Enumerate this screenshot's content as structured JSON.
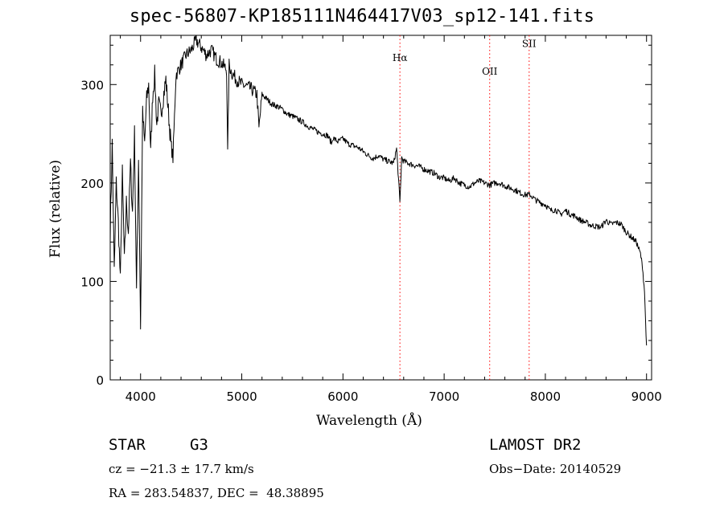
{
  "chart_data": {
    "type": "line",
    "title": "spec-56807-KP185111N464417V03_sp12-141.fits",
    "xlabel": "Wavelength (Å)",
    "ylabel": "Flux (relative)",
    "xlim": [
      3700,
      9050
    ],
    "ylim": [
      0,
      350
    ],
    "xticks": [
      4000,
      5000,
      6000,
      7000,
      8000,
      9000
    ],
    "yticks": [
      0,
      100,
      200,
      300
    ],
    "grid": false,
    "series": [
      {
        "color": "#000000",
        "x": [
          3700,
          3720,
          3740,
          3760,
          3780,
          3800,
          3820,
          3840,
          3860,
          3880,
          3900,
          3920,
          3940,
          3960,
          3980,
          4000,
          4020,
          4040,
          4060,
          4080,
          4100,
          4120,
          4140,
          4160,
          4180,
          4200,
          4250,
          4300,
          4320,
          4350,
          4400,
          4450,
          4500,
          4550,
          4600,
          4650,
          4700,
          4750,
          4800,
          4850,
          4861,
          4875,
          4900,
          4950,
          5000,
          5050,
          5100,
          5150,
          5170,
          5200,
          5250,
          5300,
          5350,
          5400,
          5450,
          5500,
          5550,
          5600,
          5650,
          5700,
          5750,
          5800,
          5850,
          5890,
          5900,
          5950,
          6000,
          6050,
          6100,
          6150,
          6200,
          6250,
          6300,
          6350,
          6400,
          6450,
          6500,
          6530,
          6563,
          6580,
          6600,
          6650,
          6700,
          6750,
          6800,
          6850,
          6900,
          6950,
          7000,
          7050,
          7100,
          7150,
          7200,
          7250,
          7300,
          7350,
          7400,
          7450,
          7500,
          7550,
          7600,
          7650,
          7700,
          7750,
          7800,
          7850,
          7900,
          7950,
          8000,
          8050,
          8100,
          8150,
          8200,
          8250,
          8300,
          8350,
          8400,
          8450,
          8500,
          8550,
          8600,
          8650,
          8700,
          8750,
          8800,
          8850,
          8900,
          8940,
          8960,
          8980,
          8990,
          9000
        ],
        "y": [
          150,
          240,
          110,
          200,
          160,
          100,
          210,
          120,
          180,
          150,
          220,
          170,
          250,
          90,
          225,
          55,
          270,
          240,
          285,
          300,
          230,
          290,
          310,
          260,
          280,
          270,
          305,
          240,
          225,
          310,
          320,
          330,
          335,
          345,
          338,
          330,
          335,
          326,
          322,
          315,
          230,
          320,
          312,
          305,
          300,
          298,
          295,
          290,
          255,
          290,
          285,
          280,
          278,
          275,
          270,
          268,
          265,
          262,
          258,
          255,
          252,
          250,
          248,
          240,
          246,
          242,
          245,
          240,
          238,
          236,
          232,
          228,
          225,
          228,
          224,
          222,
          220,
          235,
          180,
          226,
          222,
          220,
          218,
          217,
          214,
          212,
          210,
          206,
          205,
          202,
          205,
          200,
          198,
          196,
          200,
          202,
          200,
          198,
          200,
          200,
          197,
          195,
          193,
          190,
          188,
          188,
          183,
          180,
          178,
          172,
          173,
          168,
          172,
          168,
          166,
          162,
          160,
          157,
          156,
          155,
          162,
          158,
          160,
          158,
          150,
          145,
          140,
          128,
          115,
          90,
          60,
          35
        ]
      }
    ],
    "annotations": [
      {
        "label": "Hα",
        "x": 6563,
        "label_y": 324
      },
      {
        "label": "OII",
        "x": 7450,
        "label_y": 310
      },
      {
        "label": "SII",
        "x": 7840,
        "label_y": 338
      }
    ],
    "annotation_color": "#ff0000"
  },
  "info": {
    "class": "STAR",
    "subclass": "G3",
    "survey": "LAMOST DR2",
    "cz": "cz = −21.3 ± 17.7 km/s",
    "obs_date": "Obs−Date: 20140529",
    "radec": "RA = 283.54837, DEC =  48.38895"
  }
}
